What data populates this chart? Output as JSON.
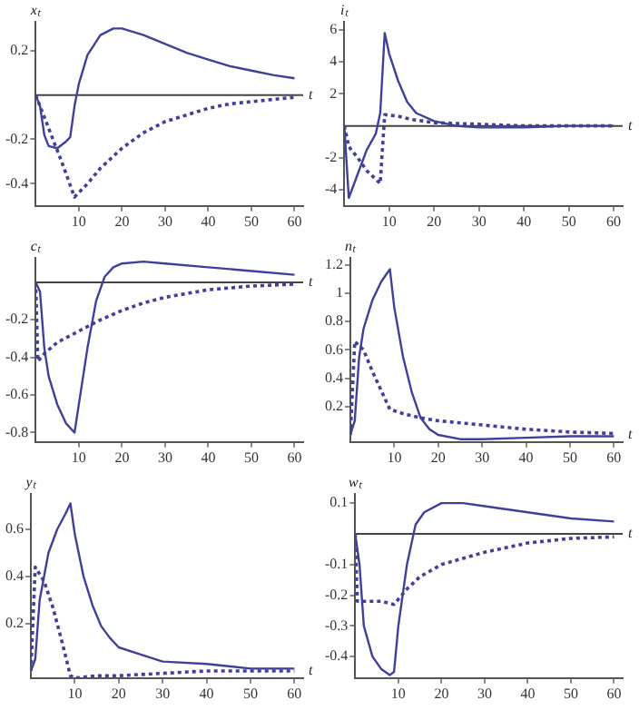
{
  "chart_data": [
    {
      "type": "line",
      "ylabel": "xₜ",
      "xlabel": "t",
      "xlim": [
        0,
        62
      ],
      "ylim": [
        -0.5,
        0.33
      ],
      "xticks": [
        10,
        20,
        30,
        40,
        50,
        60
      ],
      "yticks": [
        -0.4,
        -0.2,
        0.2
      ],
      "ref_lines": [
        {
          "axis": "y",
          "value": 0
        }
      ],
      "grid": false,
      "legend": false,
      "marker": "none",
      "series": [
        {
          "color": "#40409a",
          "line_style": "solid",
          "x": [
            0,
            1,
            2,
            3,
            5,
            7,
            8,
            9,
            10,
            12,
            15,
            18,
            20,
            25,
            30,
            35,
            40,
            45,
            50,
            55,
            60
          ],
          "values": [
            0,
            -0.05,
            -0.18,
            -0.23,
            -0.24,
            -0.21,
            -0.19,
            -0.05,
            0.05,
            0.18,
            0.27,
            0.3,
            0.3,
            0.27,
            0.23,
            0.19,
            0.16,
            0.13,
            0.11,
            0.09,
            0.075
          ]
        },
        {
          "color": "#40409a",
          "line_style": "dotted",
          "x": [
            0,
            3,
            6,
            9,
            12,
            15,
            20,
            25,
            30,
            35,
            40,
            45,
            50,
            55,
            60
          ],
          "values": [
            0,
            -0.15,
            -0.3,
            -0.46,
            -0.4,
            -0.33,
            -0.24,
            -0.17,
            -0.12,
            -0.09,
            -0.06,
            -0.04,
            -0.03,
            -0.02,
            -0.01
          ]
        }
      ]
    },
    {
      "type": "line",
      "ylabel": "iₜ",
      "xlabel": "t",
      "xlim": [
        0,
        62
      ],
      "ylim": [
        -5,
        6.5
      ],
      "xticks": [
        10,
        20,
        30,
        40,
        50,
        60
      ],
      "yticks": [
        -4,
        -2,
        2,
        4,
        6
      ],
      "ref_lines": [
        {
          "axis": "y",
          "value": 0
        }
      ],
      "grid": false,
      "legend": false,
      "marker": "none",
      "series": [
        {
          "color": "#40409a",
          "line_style": "solid",
          "x": [
            0,
            1,
            3,
            5,
            7,
            8,
            9,
            10,
            12,
            14,
            16,
            20,
            25,
            30,
            40,
            50,
            60
          ],
          "values": [
            0,
            -4.5,
            -3,
            -1.5,
            -0.5,
            0.8,
            5.8,
            4.5,
            2.8,
            1.5,
            0.8,
            0.3,
            0,
            -0.1,
            -0.1,
            0,
            0
          ]
        },
        {
          "color": "#40409a",
          "line_style": "dotted",
          "x": [
            0,
            1,
            3,
            5,
            8,
            9,
            12,
            15,
            20,
            30,
            40,
            60
          ],
          "values": [
            0,
            -1.3,
            -2,
            -2.8,
            -3.6,
            0.7,
            0.6,
            0.4,
            0.2,
            0.1,
            0,
            0
          ]
        }
      ]
    },
    {
      "type": "line",
      "ylabel": "cₜ",
      "xlabel": "t",
      "xlim": [
        0,
        62
      ],
      "ylim": [
        -0.85,
        0.13
      ],
      "xticks": [
        10,
        20,
        30,
        40,
        50,
        60
      ],
      "yticks": [
        -0.8,
        -0.6,
        -0.4,
        -0.2
      ],
      "ref_lines": [
        {
          "axis": "y",
          "value": 0
        }
      ],
      "grid": false,
      "legend": false,
      "marker": "none",
      "series": [
        {
          "color": "#40409a",
          "line_style": "solid",
          "x": [
            0,
            1,
            2,
            3,
            5,
            7,
            9,
            10,
            12,
            14,
            16,
            18,
            20,
            25,
            30,
            40,
            50,
            60
          ],
          "values": [
            0,
            -0.05,
            -0.35,
            -0.5,
            -0.65,
            -0.75,
            -0.8,
            -0.65,
            -0.35,
            -0.1,
            0.03,
            0.08,
            0.1,
            0.11,
            0.1,
            0.08,
            0.06,
            0.04
          ]
        },
        {
          "color": "#40409a",
          "line_style": "dotted",
          "x": [
            0,
            0.5,
            2,
            5,
            10,
            15,
            20,
            25,
            30,
            40,
            50,
            60
          ],
          "values": [
            0,
            -0.42,
            -0.38,
            -0.32,
            -0.26,
            -0.2,
            -0.15,
            -0.11,
            -0.08,
            -0.04,
            -0.02,
            -0.01
          ]
        }
      ]
    },
    {
      "type": "line",
      "ylabel": "nₜ",
      "xlabel": "t",
      "xlim": [
        0,
        62
      ],
      "ylim": [
        -0.05,
        1.25
      ],
      "xticks": [
        10,
        20,
        30,
        40,
        50,
        60
      ],
      "yticks": [
        0.2,
        0.4,
        0.6,
        0.8,
        1.0,
        1.2
      ],
      "grid": false,
      "legend": false,
      "marker": "none",
      "series": [
        {
          "color": "#40409a",
          "line_style": "solid",
          "x": [
            0,
            1,
            2,
            3,
            5,
            7,
            9,
            10,
            12,
            14,
            16,
            18,
            20,
            25,
            30,
            40,
            50,
            60
          ],
          "values": [
            0,
            0.1,
            0.55,
            0.75,
            0.95,
            1.08,
            1.17,
            0.9,
            0.55,
            0.3,
            0.12,
            0.04,
            0,
            -0.03,
            -0.03,
            -0.02,
            -0.01,
            -0.01
          ]
        },
        {
          "color": "#40409a",
          "line_style": "dotted",
          "x": [
            0,
            1,
            3,
            5,
            9,
            12,
            16,
            20,
            30,
            40,
            50,
            60
          ],
          "values": [
            0,
            0.66,
            0.6,
            0.45,
            0.18,
            0.15,
            0.12,
            0.1,
            0.07,
            0.04,
            0.02,
            0.01
          ]
        }
      ]
    },
    {
      "type": "line",
      "ylabel": "yₜ",
      "xlabel": "t",
      "xlim": [
        0,
        62
      ],
      "ylim": [
        -0.03,
        0.75
      ],
      "xticks": [
        10,
        20,
        30,
        40,
        50,
        60
      ],
      "yticks": [
        0.2,
        0.4,
        0.6
      ],
      "grid": false,
      "legend": false,
      "marker": "none",
      "series": [
        {
          "color": "#40409a",
          "line_style": "solid",
          "x": [
            0,
            1,
            2,
            4,
            6,
            8,
            9,
            10,
            12,
            14,
            16,
            18,
            20,
            25,
            30,
            40,
            50,
            60
          ],
          "values": [
            0,
            0.05,
            0.3,
            0.5,
            0.6,
            0.67,
            0.71,
            0.58,
            0.4,
            0.28,
            0.19,
            0.14,
            0.1,
            0.07,
            0.04,
            0.03,
            0.01,
            0.01
          ]
        },
        {
          "color": "#40409a",
          "line_style": "dotted",
          "x": [
            0,
            1,
            3,
            5,
            7,
            9,
            10,
            15,
            20,
            30,
            40,
            60
          ],
          "values": [
            0,
            0.44,
            0.38,
            0.27,
            0.13,
            -0.02,
            -0.03,
            -0.02,
            -0.02,
            -0.01,
            0,
            0
          ]
        }
      ]
    },
    {
      "type": "line",
      "ylabel": "wₜ",
      "xlabel": "t",
      "xlim": [
        0,
        62
      ],
      "ylim": [
        -0.47,
        0.13
      ],
      "xticks": [
        10,
        20,
        30,
        40,
        50,
        60
      ],
      "yticks": [
        -0.4,
        -0.3,
        -0.2,
        -0.1,
        0.1
      ],
      "ref_lines": [
        {
          "axis": "y",
          "value": 0
        }
      ],
      "grid": false,
      "legend": false,
      "marker": "none",
      "series": [
        {
          "color": "#40409a",
          "line_style": "solid",
          "x": [
            0,
            1,
            2,
            4,
            6,
            8,
            9,
            10,
            12,
            14,
            16,
            20,
            25,
            30,
            40,
            50,
            60
          ],
          "values": [
            0,
            -0.1,
            -0.3,
            -0.4,
            -0.44,
            -0.46,
            -0.45,
            -0.3,
            -0.1,
            0.03,
            0.07,
            0.1,
            0.1,
            0.09,
            0.07,
            0.05,
            0.04
          ]
        },
        {
          "color": "#40409a",
          "line_style": "dotted",
          "x": [
            0,
            0.5,
            3,
            6,
            9,
            12,
            15,
            20,
            30,
            40,
            50,
            60
          ],
          "values": [
            0,
            -0.22,
            -0.22,
            -0.22,
            -0.23,
            -0.18,
            -0.14,
            -0.1,
            -0.06,
            -0.03,
            -0.015,
            -0.01
          ]
        }
      ]
    }
  ]
}
